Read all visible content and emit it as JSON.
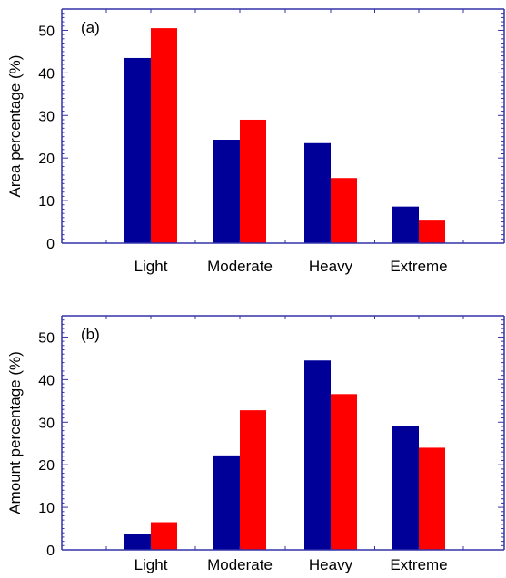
{
  "chart_data": [
    {
      "type": "bar",
      "panel_label": "(a)",
      "ylabel": "Area percentage (%)",
      "categories": [
        "Light",
        "Moderate",
        "Heavy",
        "Extreme"
      ],
      "ylim": [
        0,
        55
      ],
      "yticks": [
        0,
        10,
        20,
        30,
        40,
        50
      ],
      "series": [
        {
          "color": "#000099",
          "values": [
            43.5,
            24.3,
            23.5,
            8.6
          ]
        },
        {
          "color": "#ff0000",
          "values": [
            50.5,
            29.0,
            15.3,
            5.3
          ]
        }
      ],
      "axis_color": "#3333aa",
      "grid": false
    },
    {
      "type": "bar",
      "panel_label": "(b)",
      "ylabel": "Amount percentage (%)",
      "categories": [
        "Light",
        "Moderate",
        "Heavy",
        "Extreme"
      ],
      "ylim": [
        0,
        55
      ],
      "yticks": [
        0,
        10,
        20,
        30,
        40,
        50
      ],
      "series": [
        {
          "color": "#000099",
          "values": [
            3.8,
            22.2,
            44.5,
            29.0
          ]
        },
        {
          "color": "#ff0000",
          "values": [
            6.5,
            32.8,
            36.6,
            24.0
          ]
        }
      ],
      "axis_color": "#3333aa",
      "grid": false
    }
  ]
}
